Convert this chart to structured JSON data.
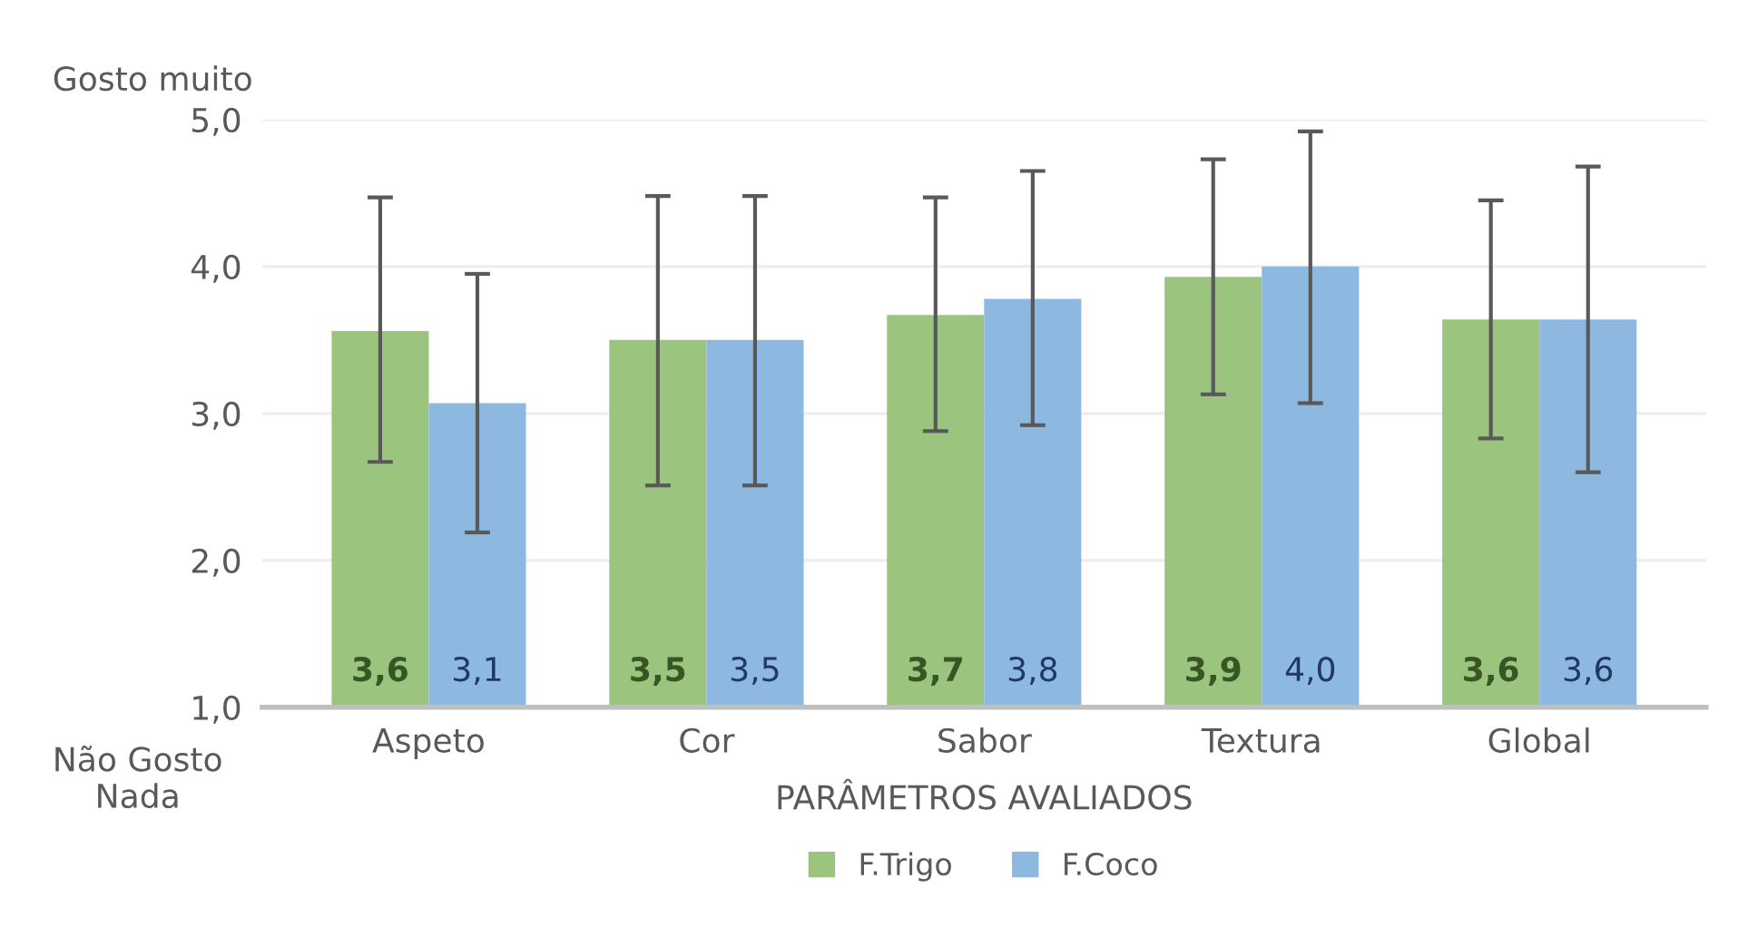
{
  "chart_data": {
    "type": "bar",
    "xlabel": "PARÂMETROS AVALIADOS",
    "categories": [
      "Aspeto",
      "Cor",
      "Sabor",
      "Textura",
      "Global"
    ],
    "series": [
      {
        "name": "F.Trigo",
        "color": "#9bc47e",
        "values": [
          3.56,
          3.5,
          3.67,
          3.93,
          3.64
        ],
        "errors": [
          [
            2.67,
            4.47
          ],
          [
            2.51,
            4.48
          ],
          [
            2.88,
            4.47
          ],
          [
            3.13,
            4.73
          ],
          [
            2.83,
            4.45
          ]
        ],
        "value_labels": [
          "3,6",
          "3,5",
          "3,7",
          "3,9",
          "3,6"
        ]
      },
      {
        "name": "F.Coco",
        "color": "#8db8e0",
        "values": [
          3.07,
          3.5,
          3.78,
          4.0,
          3.64
        ],
        "errors": [
          [
            2.19,
            3.95
          ],
          [
            2.51,
            4.48
          ],
          [
            2.92,
            4.65
          ],
          [
            3.07,
            4.92
          ],
          [
            2.6,
            4.68
          ]
        ],
        "value_labels": [
          "3,1",
          "3,5",
          "3,8",
          "4,0",
          "3,6"
        ]
      }
    ],
    "ylim": [
      1,
      5
    ],
    "yticks": [
      {
        "value": 1,
        "label": "1,0"
      },
      {
        "value": 2,
        "label": "2,0"
      },
      {
        "value": 3,
        "label": "3,0"
      },
      {
        "value": 4,
        "label": "4,0"
      },
      {
        "value": 5,
        "label": "5,0"
      }
    ],
    "annotations": [
      "Gosto muito",
      "Não Gosto\nNada"
    ],
    "grid": "y",
    "legend": "bottom"
  }
}
